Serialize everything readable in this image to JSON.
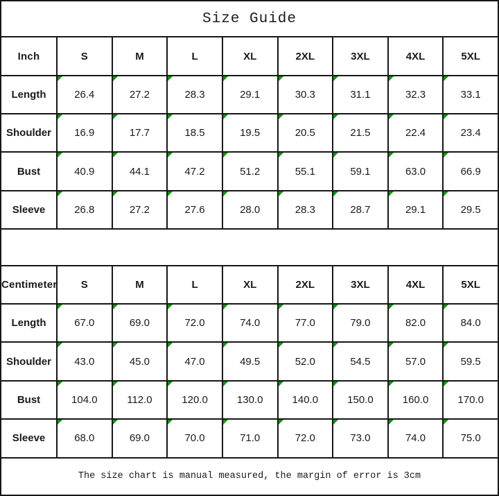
{
  "title": "Size Guide",
  "footer_note": "The size chart is manual measured, the margin of error is 3cm",
  "colors": {
    "background": "#ffffff",
    "border": "#161616",
    "text": "#1a1a1a",
    "indicator_green": "#0c960c"
  },
  "tables": [
    {
      "unit_label": "Inch",
      "sizes": [
        "S",
        "M",
        "L",
        "XL",
        "2XL",
        "3XL",
        "4XL",
        "5XL"
      ],
      "rows": [
        {
          "label": "Length",
          "values": [
            "26.4",
            "27.2",
            "28.3",
            "29.1",
            "30.3",
            "31.1",
            "32.3",
            "33.1"
          ]
        },
        {
          "label": "Shoulder",
          "values": [
            "16.9",
            "17.7",
            "18.5",
            "19.5",
            "20.5",
            "21.5",
            "22.4",
            "23.4"
          ]
        },
        {
          "label": "Bust",
          "values": [
            "40.9",
            "44.1",
            "47.2",
            "51.2",
            "55.1",
            "59.1",
            "63.0",
            "66.9"
          ]
        },
        {
          "label": "Sleeve",
          "values": [
            "26.8",
            "27.2",
            "27.6",
            "28.0",
            "28.3",
            "28.7",
            "29.1",
            "29.5"
          ]
        }
      ]
    },
    {
      "unit_label": "Centimeter",
      "sizes": [
        "S",
        "M",
        "L",
        "XL",
        "2XL",
        "3XL",
        "4XL",
        "5XL"
      ],
      "rows": [
        {
          "label": "Length",
          "values": [
            "67.0",
            "69.0",
            "72.0",
            "74.0",
            "77.0",
            "79.0",
            "82.0",
            "84.0"
          ]
        },
        {
          "label": "Shoulder",
          "values": [
            "43.0",
            "45.0",
            "47.0",
            "49.5",
            "52.0",
            "54.5",
            "57.0",
            "59.5"
          ]
        },
        {
          "label": "Bust",
          "values": [
            "104.0",
            "112.0",
            "120.0",
            "130.0",
            "140.0",
            "150.0",
            "160.0",
            "170.0"
          ]
        },
        {
          "label": "Sleeve",
          "values": [
            "68.0",
            "69.0",
            "70.0",
            "71.0",
            "72.0",
            "73.0",
            "74.0",
            "75.0"
          ]
        }
      ]
    }
  ]
}
